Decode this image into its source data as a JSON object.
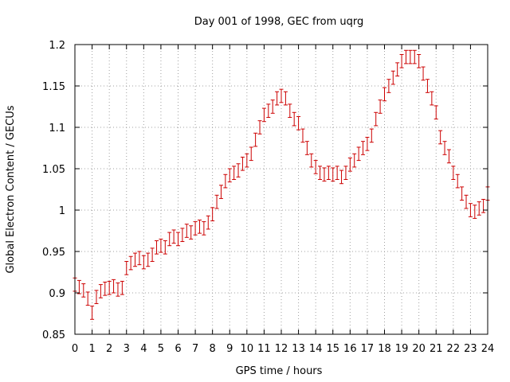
{
  "chart_data": {
    "type": "scatter",
    "title": "Day 001 of 1998, GEC from uqrg",
    "xlabel": "GPS time / hours",
    "ylabel": "Global Electron Content / GECUs",
    "xlim": [
      0,
      24
    ],
    "ylim": [
      0.85,
      1.2
    ],
    "grid": true,
    "x_ticks": [
      0,
      1,
      2,
      3,
      4,
      5,
      6,
      7,
      8,
      9,
      10,
      11,
      12,
      13,
      14,
      15,
      16,
      17,
      18,
      19,
      20,
      21,
      22,
      23,
      24
    ],
    "x_tick_labels": [
      "0",
      "1",
      "2",
      "3",
      "4",
      "5",
      "6",
      "7",
      "8",
      "9",
      "10",
      "11",
      "12",
      "13",
      "14",
      "15",
      "16",
      "17",
      "18",
      "19",
      "20",
      "21",
      "22",
      "23",
      "24"
    ],
    "y_ticks": [
      0.85,
      0.9,
      0.95,
      1.0,
      1.05,
      1.1,
      1.15,
      1.2
    ],
    "y_tick_labels": [
      "0.85",
      "0.9",
      "0.95",
      "1",
      "1.05",
      "1.1",
      "1.15",
      "1.2"
    ],
    "error_bar": 0.008,
    "color": "#cc0000",
    "series": [
      {
        "name": "GEC",
        "x": [
          0,
          0.25,
          0.5,
          0.75,
          1,
          1.25,
          1.5,
          1.75,
          2,
          2.25,
          2.5,
          2.75,
          3,
          3.25,
          3.5,
          3.75,
          4,
          4.25,
          4.5,
          4.75,
          5,
          5.25,
          5.5,
          5.75,
          6,
          6.25,
          6.5,
          6.75,
          7,
          7.25,
          7.5,
          7.75,
          8,
          8.25,
          8.5,
          8.75,
          9,
          9.25,
          9.5,
          9.75,
          10,
          10.25,
          10.5,
          10.75,
          11,
          11.25,
          11.5,
          11.75,
          12,
          12.25,
          12.5,
          12.75,
          13,
          13.25,
          13.5,
          13.75,
          14,
          14.25,
          14.5,
          14.75,
          15,
          15.25,
          15.5,
          15.75,
          16,
          16.25,
          16.5,
          16.75,
          17,
          17.25,
          17.5,
          17.75,
          18,
          18.25,
          18.5,
          18.75,
          19,
          19.25,
          19.5,
          19.75,
          20,
          20.25,
          20.5,
          20.75,
          21,
          21.25,
          21.5,
          21.75,
          22,
          22.25,
          22.5,
          22.75,
          23,
          23.25,
          23.5,
          23.75,
          24
        ],
        "values": [
          0.91,
          0.907,
          0.903,
          0.893,
          0.876,
          0.895,
          0.902,
          0.905,
          0.906,
          0.908,
          0.904,
          0.906,
          0.93,
          0.936,
          0.94,
          0.942,
          0.937,
          0.94,
          0.946,
          0.955,
          0.957,
          0.955,
          0.965,
          0.968,
          0.965,
          0.97,
          0.975,
          0.973,
          0.978,
          0.98,
          0.978,
          0.985,
          0.995,
          1.01,
          1.022,
          1.035,
          1.042,
          1.045,
          1.048,
          1.056,
          1.06,
          1.068,
          1.085,
          1.1,
          1.115,
          1.12,
          1.125,
          1.135,
          1.138,
          1.135,
          1.12,
          1.11,
          1.105,
          1.09,
          1.075,
          1.06,
          1.052,
          1.045,
          1.043,
          1.045,
          1.043,
          1.045,
          1.04,
          1.045,
          1.055,
          1.06,
          1.068,
          1.075,
          1.08,
          1.09,
          1.11,
          1.125,
          1.14,
          1.15,
          1.16,
          1.17,
          1.18,
          1.185,
          1.185,
          1.185,
          1.18,
          1.165,
          1.15,
          1.135,
          1.118,
          1.088,
          1.075,
          1.065,
          1.045,
          1.035,
          1.02,
          1.01,
          1.0,
          0.998,
          1.002,
          1.005,
          1.02
        ]
      }
    ]
  }
}
